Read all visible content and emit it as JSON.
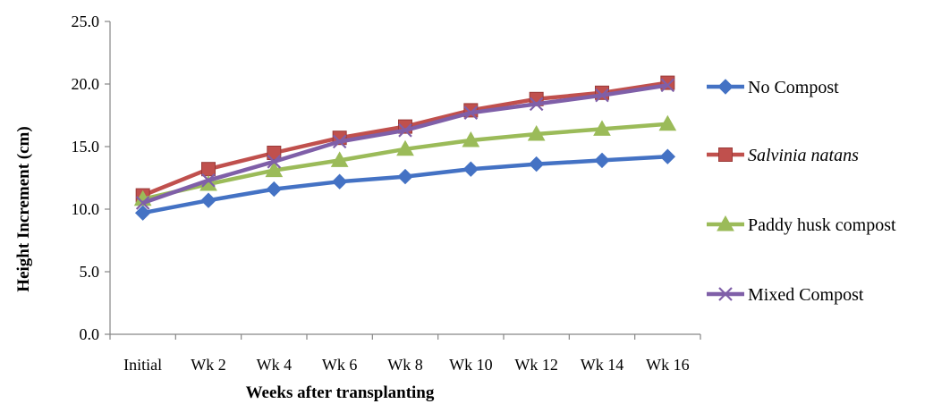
{
  "chart_data": {
    "type": "line",
    "title": "",
    "xlabel": "Weeks after transplanting",
    "ylabel": "Height Increment (cm)",
    "categories": [
      "Initial",
      "Wk 2",
      "Wk 4",
      "Wk 6",
      "Wk 8",
      "Wk 10",
      "Wk 12",
      "Wk 14",
      "Wk 16"
    ],
    "ylim": [
      0,
      25
    ],
    "yticks": [
      "0.0",
      "5.0",
      "10.0",
      "15.0",
      "20.0",
      "25.0"
    ],
    "grid": false,
    "legend_position": "right",
    "series": [
      {
        "name": "No Compost",
        "italic": false,
        "marker": "diamond",
        "color": "#4472C4",
        "values": [
          9.7,
          10.7,
          11.6,
          12.2,
          12.6,
          13.2,
          13.6,
          13.9,
          14.2
        ]
      },
      {
        "name": "Salvinia natans",
        "italic": true,
        "marker": "square",
        "color": "#C0504D",
        "values": [
          11.1,
          13.2,
          14.5,
          15.7,
          16.6,
          17.9,
          18.8,
          19.3,
          20.1
        ]
      },
      {
        "name": "Paddy husk compost",
        "italic": false,
        "marker": "triangle",
        "color": "#9BBB59",
        "values": [
          10.8,
          12.0,
          13.1,
          13.9,
          14.8,
          15.5,
          16.0,
          16.4,
          16.8
        ]
      },
      {
        "name": "Mixed Compost",
        "italic": false,
        "marker": "x",
        "color": "#7F5FA8",
        "values": [
          10.5,
          12.3,
          13.8,
          15.4,
          16.3,
          17.7,
          18.4,
          19.1,
          19.9
        ]
      }
    ]
  }
}
